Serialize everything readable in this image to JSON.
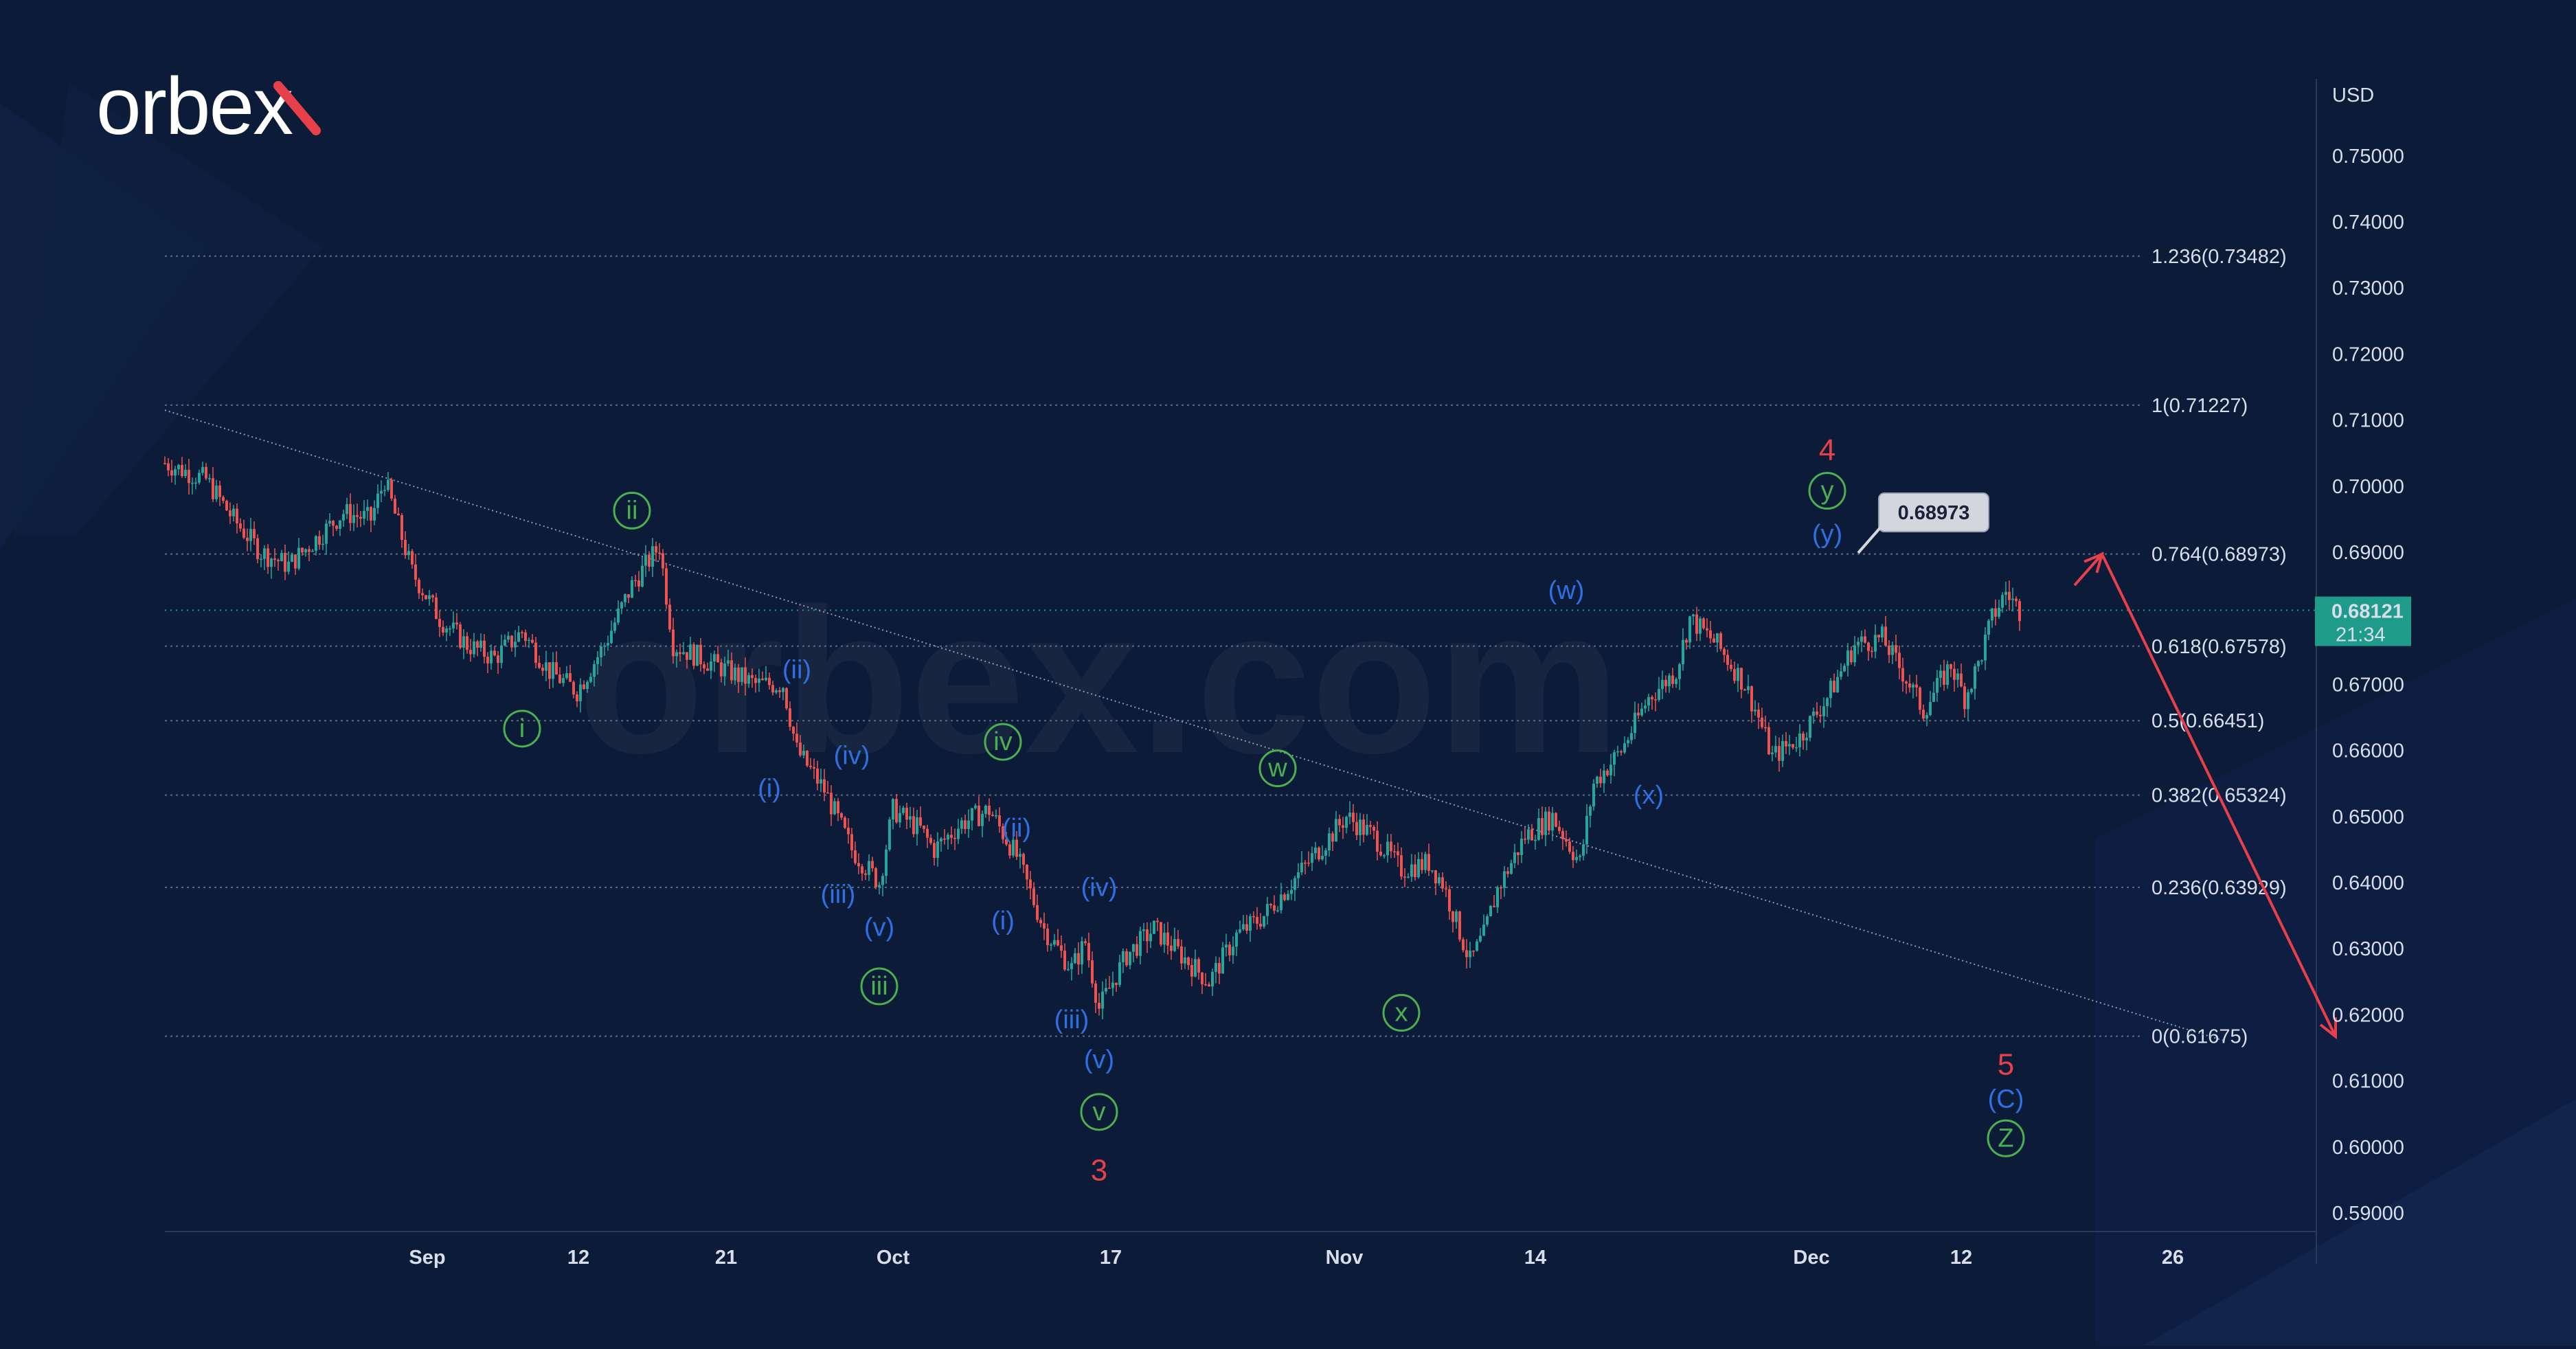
{
  "brand": {
    "logo_text": "orbex",
    "watermark": "orbex.com"
  },
  "colors": {
    "background": "#0c1b38",
    "up_candle": "#26a69a",
    "down_candle": "#ef5350",
    "blue_wave": "#2f6fe0",
    "green_wave": "#4caf50",
    "red_wave": "#e8404a",
    "price_tag": "#1f9b8c"
  },
  "chart_data": {
    "type": "line",
    "title": "",
    "currency_label": "USD",
    "y_ticks": [
      "0.75000",
      "0.74000",
      "0.73000",
      "0.72000",
      "0.71000",
      "0.70000",
      "0.69000",
      "0.68000",
      "0.67000",
      "0.66000",
      "0.65000",
      "0.64000",
      "0.63000",
      "0.62000",
      "0.61000",
      "0.60000",
      "0.59000"
    ],
    "ylim": [
      0.5875,
      0.7545
    ],
    "x_ticks": [
      "Sep",
      "12",
      "21",
      "Oct",
      "17",
      "Nov",
      "14",
      "Dec",
      "12",
      "26"
    ],
    "price_series_approx": [
      [
        0,
        0.7035
      ],
      [
        3,
        0.701
      ],
      [
        5,
        0.695
      ],
      [
        7,
        0.69
      ],
      [
        9,
        0.688
      ],
      [
        11,
        0.692
      ],
      [
        13,
        0.696
      ],
      [
        15,
        0.695
      ],
      [
        16,
        0.701
      ],
      [
        18,
        0.687
      ],
      [
        20,
        0.68
      ],
      [
        22,
        0.676
      ],
      [
        24,
        0.674
      ],
      [
        26,
        0.678
      ],
      [
        28,
        0.672
      ],
      [
        30,
        0.669
      ],
      [
        32,
        0.676
      ],
      [
        34,
        0.685
      ],
      [
        35,
        0.688
      ],
      [
        36,
        0.691
      ],
      [
        37,
        0.676
      ],
      [
        39,
        0.674
      ],
      [
        41,
        0.672
      ],
      [
        43,
        0.67
      ],
      [
        45,
        0.67
      ],
      [
        46,
        0.66
      ],
      [
        48,
        0.654
      ],
      [
        50,
        0.645
      ],
      [
        52,
        0.64
      ],
      [
        53,
        0.651
      ],
      [
        55,
        0.648
      ],
      [
        56,
        0.645
      ],
      [
        58,
        0.649
      ],
      [
        60,
        0.651
      ],
      [
        62,
        0.644
      ],
      [
        64,
        0.633
      ],
      [
        66,
        0.627
      ],
      [
        67,
        0.631
      ],
      [
        68,
        0.621
      ],
      [
        70,
        0.629
      ],
      [
        72,
        0.633
      ],
      [
        74,
        0.629
      ],
      [
        76,
        0.625
      ],
      [
        78,
        0.632
      ],
      [
        80,
        0.635
      ],
      [
        82,
        0.64
      ],
      [
        84,
        0.645
      ],
      [
        86,
        0.65
      ],
      [
        88,
        0.647
      ],
      [
        90,
        0.642
      ],
      [
        92,
        0.643
      ],
      [
        93,
        0.64
      ],
      [
        95,
        0.628
      ],
      [
        96,
        0.632
      ],
      [
        97,
        0.639
      ],
      [
        99,
        0.647
      ],
      [
        101,
        0.65
      ],
      [
        103,
        0.643
      ],
      [
        104,
        0.655
      ],
      [
        106,
        0.66
      ],
      [
        108,
        0.668
      ],
      [
        110,
        0.672
      ],
      [
        111,
        0.68
      ],
      [
        113,
        0.676
      ],
      [
        115,
        0.67
      ],
      [
        116,
        0.665
      ],
      [
        117,
        0.659
      ],
      [
        119,
        0.662
      ],
      [
        121,
        0.668
      ],
      [
        123,
        0.676
      ],
      [
        125,
        0.677
      ],
      [
        127,
        0.67
      ],
      [
        128,
        0.666
      ],
      [
        130,
        0.673
      ],
      [
        131,
        0.668
      ],
      [
        132,
        0.673
      ],
      [
        133,
        0.68
      ],
      [
        134,
        0.684
      ],
      [
        135,
        0.6812
      ]
    ],
    "fib_levels": [
      {
        "ratio": "1.236",
        "value": 0.73482,
        "label": "1.236(0.73482)"
      },
      {
        "ratio": "1",
        "value": 0.71227,
        "label": "1(0.71227)"
      },
      {
        "ratio": "0.764",
        "value": 0.68973,
        "label": "0.764(0.68973)"
      },
      {
        "ratio": "0.618",
        "value": 0.67578,
        "label": "0.618(0.67578)"
      },
      {
        "ratio": "0.5",
        "value": 0.66451,
        "label": "0.5(0.66451)"
      },
      {
        "ratio": "0.382",
        "value": 0.65324,
        "label": "0.382(0.65324)"
      },
      {
        "ratio": "0.236",
        "value": 0.63929,
        "label": "0.236(0.63929)"
      },
      {
        "ratio": "0",
        "value": 0.61675,
        "label": "0(0.61675)"
      }
    ],
    "trendline": {
      "start": [
        0,
        0.7115
      ],
      "end": [
        150,
        0.616
      ]
    },
    "forecast_path": [
      [
        139,
        0.685
      ],
      [
        141,
        0.6897
      ],
      [
        158,
        0.6167
      ]
    ],
    "last_price": {
      "value": "0.68121",
      "countdown": "21:34"
    },
    "target_tag": "0.68973",
    "wave_labels": [
      {
        "text": "i",
        "style": "circle",
        "color": "green",
        "x": 26,
        "y": 0.6633
      },
      {
        "text": "ii",
        "style": "circle",
        "color": "green",
        "x": 34,
        "y": 0.6963
      },
      {
        "text": "(i)",
        "style": "plain",
        "color": "blue",
        "x": 44,
        "y": 0.6543
      },
      {
        "text": "(ii)",
        "style": "plain",
        "color": "blue",
        "x": 46,
        "y": 0.6723
      },
      {
        "text": "(iv)",
        "style": "plain",
        "color": "blue",
        "x": 50,
        "y": 0.6593
      },
      {
        "text": "(iii)",
        "style": "plain",
        "color": "blue",
        "x": 49,
        "y": 0.6383
      },
      {
        "text": "(v)",
        "style": "plain",
        "color": "blue",
        "x": 52,
        "y": 0.6333
      },
      {
        "text": "iii",
        "style": "circle",
        "color": "green",
        "x": 52,
        "y": 0.6243
      },
      {
        "text": "iv",
        "style": "circle",
        "color": "green",
        "x": 61,
        "y": 0.6613
      },
      {
        "text": "(ii)",
        "style": "plain",
        "color": "blue",
        "x": 62,
        "y": 0.6483
      },
      {
        "text": "(i)",
        "style": "plain",
        "color": "blue",
        "x": 61,
        "y": 0.6343
      },
      {
        "text": "(iv)",
        "style": "plain",
        "color": "blue",
        "x": 68,
        "y": 0.6393
      },
      {
        "text": "(iii)",
        "style": "plain",
        "color": "blue",
        "x": 66,
        "y": 0.6193
      },
      {
        "text": "(v)",
        "style": "plain",
        "color": "blue",
        "x": 68,
        "y": 0.6133
      },
      {
        "text": "v",
        "style": "circle",
        "color": "green",
        "x": 68,
        "y": 0.6053
      },
      {
        "text": "3",
        "style": "plain",
        "color": "red",
        "x": 68,
        "y": 0.5963
      },
      {
        "text": "w",
        "style": "circle",
        "color": "green",
        "x": 81,
        "y": 0.6573
      },
      {
        "text": "x",
        "style": "circle",
        "color": "green",
        "x": 90,
        "y": 0.6203
      },
      {
        "text": "(w)",
        "style": "plain",
        "color": "blue",
        "x": 102,
        "y": 0.6843
      },
      {
        "text": "(x)",
        "style": "plain",
        "color": "blue",
        "x": 108,
        "y": 0.6533
      },
      {
        "text": "(y)",
        "style": "plain",
        "color": "blue",
        "x": 121,
        "y": 0.6928
      },
      {
        "text": "y",
        "style": "circle",
        "color": "green",
        "x": 121,
        "y": 0.6993
      },
      {
        "text": "4",
        "style": "plain",
        "color": "red",
        "x": 121,
        "y": 0.7053
      },
      {
        "text": "5",
        "style": "plain",
        "color": "red",
        "x": 134,
        "y": 0.6123
      },
      {
        "text": "(C)",
        "style": "plain",
        "color": "blue",
        "x": 134,
        "y": 0.6073
      },
      {
        "text": "Z",
        "style": "circle",
        "color": "green",
        "x": 134,
        "y": 0.6013
      }
    ]
  }
}
